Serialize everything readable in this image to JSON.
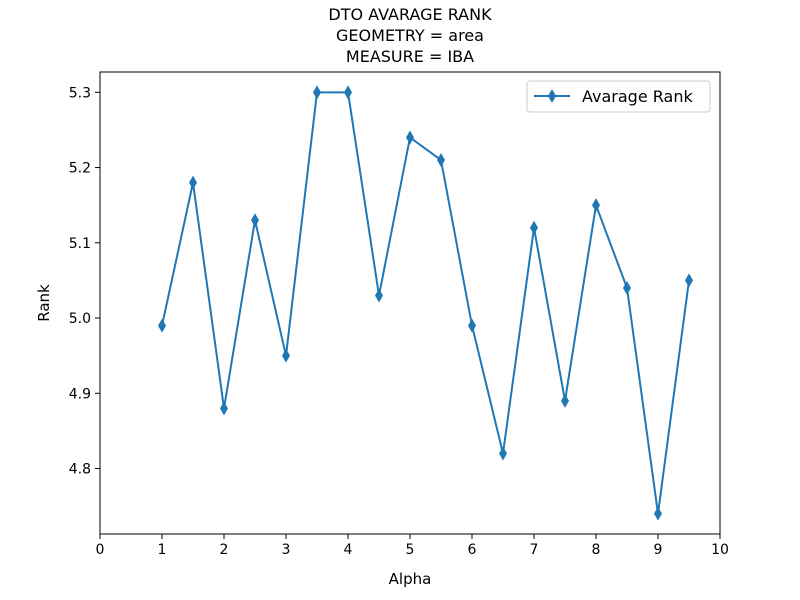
{
  "chart_data": {
    "type": "line",
    "title_lines": [
      "DTO AVARAGE RANK",
      "GEOMETRY = area",
      "MEASURE = IBA"
    ],
    "xlabel": "Alpha",
    "ylabel": "Rank",
    "xlim": [
      0,
      10
    ],
    "ylim": [
      4.713,
      5.327
    ],
    "xticks": [
      0,
      1,
      2,
      3,
      4,
      5,
      6,
      7,
      8,
      9,
      10
    ],
    "xtick_labels": [
      "0",
      "1",
      "2",
      "3",
      "4",
      "5",
      "6",
      "7",
      "8",
      "9",
      "10"
    ],
    "yticks": [
      4.8,
      4.9,
      5.0,
      5.1,
      5.2,
      5.3
    ],
    "ytick_labels": [
      "4.8",
      "4.9",
      "5.0",
      "5.1",
      "5.2",
      "5.3"
    ],
    "grid": false,
    "legend_position": "top-right",
    "series": [
      {
        "name": "Avarage Rank",
        "color": "#1f77b4",
        "marker": "thin-diamond",
        "x": [
          1,
          1.5,
          2,
          2.5,
          3,
          3.5,
          4,
          4.5,
          5,
          5.5,
          6,
          6.5,
          7,
          7.5,
          8,
          8.5,
          9,
          9.5
        ],
        "y": [
          4.99,
          5.18,
          4.88,
          5.13,
          4.95,
          5.3,
          5.3,
          5.03,
          5.24,
          5.21,
          4.99,
          4.82,
          5.12,
          4.89,
          5.15,
          5.04,
          4.74,
          5.05
        ]
      }
    ]
  }
}
